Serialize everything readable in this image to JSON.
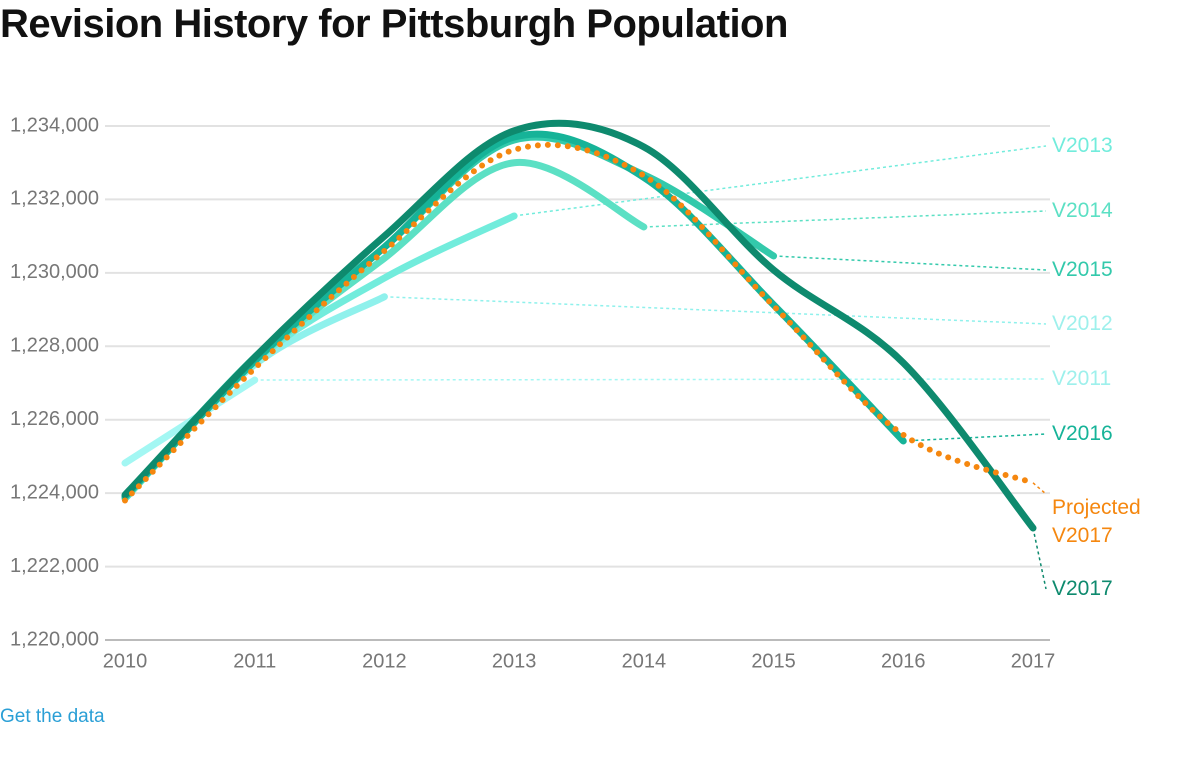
{
  "chart_data": {
    "type": "line",
    "title": "Revision History for Pittsburgh Population",
    "x": [
      2010,
      2011,
      2012,
      2013,
      2014,
      2015,
      2016,
      2017
    ],
    "xlim": [
      2010,
      2017
    ],
    "xticks": [
      2010,
      2011,
      2012,
      2013,
      2014,
      2015,
      2016,
      2017
    ],
    "ylim": [
      1220000,
      1234000
    ],
    "yticks": [
      {
        "value": 1220000,
        "label": "1,220,000"
      },
      {
        "value": 1222000,
        "label": "1,222,000"
      },
      {
        "value": 1224000,
        "label": "1,224,000"
      },
      {
        "value": 1226000,
        "label": "1,226,000"
      },
      {
        "value": 1228000,
        "label": "1,228,000"
      },
      {
        "value": 1230000,
        "label": "1,230,000"
      },
      {
        "value": 1232000,
        "label": "1,232,000"
      },
      {
        "value": 1234000,
        "label": "1,234,000"
      }
    ],
    "grid": true,
    "series": [
      {
        "name": "V2011",
        "color": "#a3f7f3",
        "values": [
          1224820,
          1227080,
          null,
          null,
          null,
          null,
          null,
          null
        ]
      },
      {
        "name": "V2012",
        "color": "#8ff1ec",
        "values": [
          1223900,
          1227500,
          1229350,
          null,
          null,
          null,
          null,
          null
        ]
      },
      {
        "name": "V2013",
        "color": "#72ecdc",
        "values": [
          1223900,
          1227600,
          1229860,
          1231550,
          null,
          null,
          null,
          null
        ]
      },
      {
        "name": "V2014",
        "color": "#5ce0c4",
        "values": [
          1223850,
          1227600,
          1230400,
          1233000,
          1231250,
          null,
          null,
          null
        ]
      },
      {
        "name": "V2015",
        "color": "#33c9ab",
        "values": [
          1223900,
          1227700,
          1230700,
          1233620,
          1232670,
          1230460,
          null,
          null
        ]
      },
      {
        "name": "V2016",
        "color": "#16b398",
        "values": [
          1223900,
          1227600,
          1230700,
          1233700,
          1232600,
          1229130,
          1225420,
          null
        ]
      },
      {
        "name": "V2017",
        "color": "#0e8a6e",
        "values": [
          1223950,
          1227700,
          1231000,
          1233870,
          1233430,
          1230080,
          1227550,
          1223050
        ]
      },
      {
        "name": "Projected V2017",
        "color": "#f5870f",
        "dotted": true,
        "values": [
          1223800,
          1227400,
          1230600,
          1233350,
          1232650,
          1229100,
          1225590,
          1224280
        ]
      }
    ],
    "link": "Get the data"
  }
}
